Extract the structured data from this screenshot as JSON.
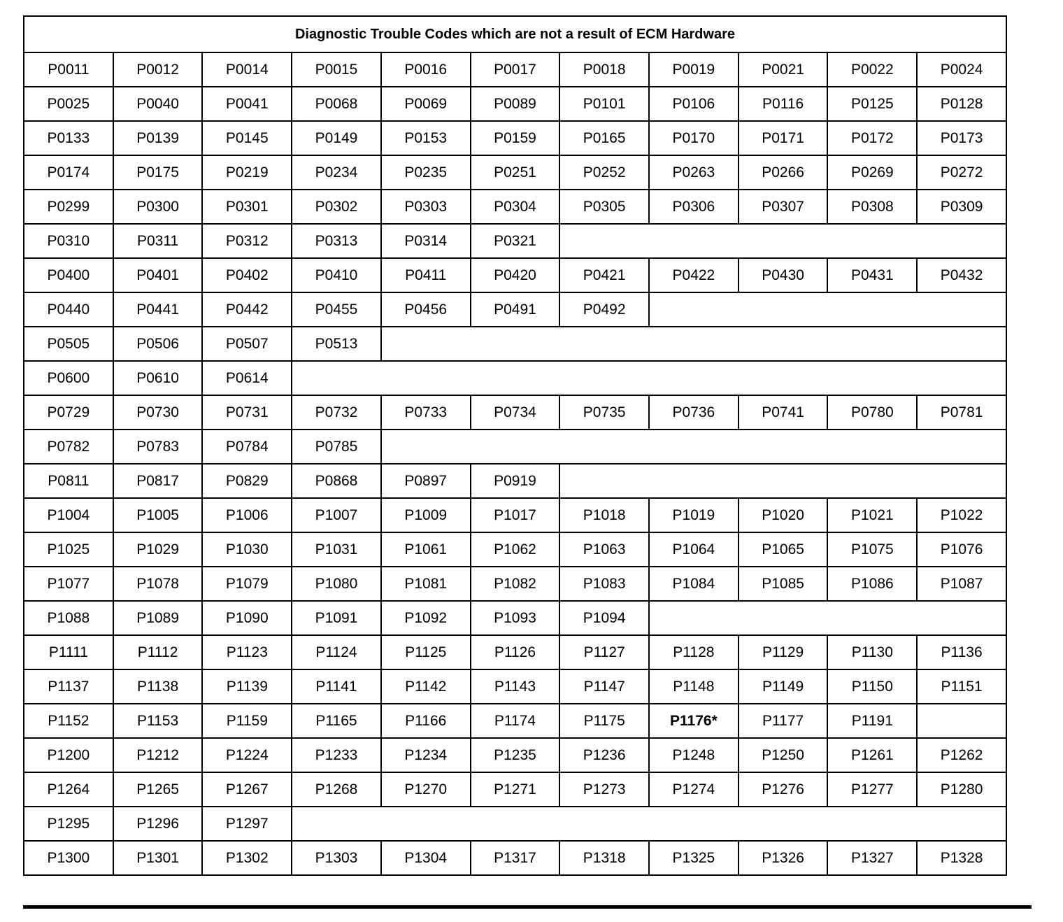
{
  "table": {
    "title": "Diagnostic Trouble Codes which are not a result of ECM Hardware",
    "columns": 11,
    "bold_codes": [
      "P1176*"
    ],
    "rows": [
      [
        "P0011",
        "P0012",
        "P0014",
        "P0015",
        "P0016",
        "P0017",
        "P0018",
        "P0019",
        "P0021",
        "P0022",
        "P0024"
      ],
      [
        "P0025",
        "P0040",
        "P0041",
        "P0068",
        "P0069",
        "P0089",
        "P0101",
        "P0106",
        "P0116",
        "P0125",
        "P0128"
      ],
      [
        "P0133",
        "P0139",
        "P0145",
        "P0149",
        "P0153",
        "P0159",
        "P0165",
        "P0170",
        "P0171",
        "P0172",
        "P0173"
      ],
      [
        "P0174",
        "P0175",
        "P0219",
        "P0234",
        "P0235",
        "P0251",
        "P0252",
        "P0263",
        "P0266",
        "P0269",
        "P0272"
      ],
      [
        "P0299",
        "P0300",
        "P0301",
        "P0302",
        "P0303",
        "P0304",
        "P0305",
        "P0306",
        "P0307",
        "P0308",
        "P0309"
      ],
      [
        "P0310",
        "P0311",
        "P0312",
        "P0313",
        "P0314",
        "P0321"
      ],
      [
        "P0400",
        "P0401",
        "P0402",
        "P0410",
        "P0411",
        "P0420",
        "P0421",
        "P0422",
        "P0430",
        "P0431",
        "P0432"
      ],
      [
        "P0440",
        "P0441",
        "P0442",
        "P0455",
        "P0456",
        "P0491",
        "P0492"
      ],
      [
        "P0505",
        "P0506",
        "P0507",
        "P0513"
      ],
      [
        "P0600",
        "P0610",
        "P0614"
      ],
      [
        "P0729",
        "P0730",
        "P0731",
        "P0732",
        "P0733",
        "P0734",
        "P0735",
        "P0736",
        "P0741",
        "P0780",
        "P0781"
      ],
      [
        "P0782",
        "P0783",
        "P0784",
        "P0785"
      ],
      [
        "P0811",
        "P0817",
        "P0829",
        "P0868",
        "P0897",
        "P0919"
      ],
      [
        "P1004",
        "P1005",
        "P1006",
        "P1007",
        "P1009",
        "P1017",
        "P1018",
        "P1019",
        "P1020",
        "P1021",
        "P1022"
      ],
      [
        "P1025",
        "P1029",
        "P1030",
        "P1031",
        "P1061",
        "P1062",
        "P1063",
        "P1064",
        "P1065",
        "P1075",
        "P1076"
      ],
      [
        "P1077",
        "P1078",
        "P1079",
        "P1080",
        "P1081",
        "P1082",
        "P1083",
        "P1084",
        "P1085",
        "P1086",
        "P1087"
      ],
      [
        "P1088",
        "P1089",
        "P1090",
        "P1091",
        "P1092",
        "P1093",
        "P1094"
      ],
      [
        "P1111",
        "P1112",
        "P1123",
        "P1124",
        "P1125",
        "P1126",
        "P1127",
        "P1128",
        "P1129",
        "P1130",
        "P1136"
      ],
      [
        "P1137",
        "P1138",
        "P1139",
        "P1141",
        "P1142",
        "P1143",
        "P1147",
        "P1148",
        "P1149",
        "P1150",
        "P1151"
      ],
      [
        "P1152",
        "P1153",
        "P1159",
        "P1165",
        "P1166",
        "P1174",
        "P1175",
        "P1176*",
        "P1177",
        "P1191",
        ""
      ],
      [
        "P1200",
        "P1212",
        "P1224",
        "P1233",
        "P1234",
        "P1235",
        "P1236",
        "P1248",
        "P1250",
        "P1261",
        "P1262"
      ],
      [
        "P1264",
        "P1265",
        "P1267",
        "P1268",
        "P1270",
        "P1271",
        "P1273",
        "P1274",
        "P1276",
        "P1277",
        "P1280"
      ],
      [
        "P1295",
        "P1296",
        "P1297"
      ],
      [
        "P1300",
        "P1301",
        "P1302",
        "P1303",
        "P1304",
        "P1317",
        "P1318",
        "P1325",
        "P1326",
        "P1327",
        "P1328"
      ]
    ]
  }
}
